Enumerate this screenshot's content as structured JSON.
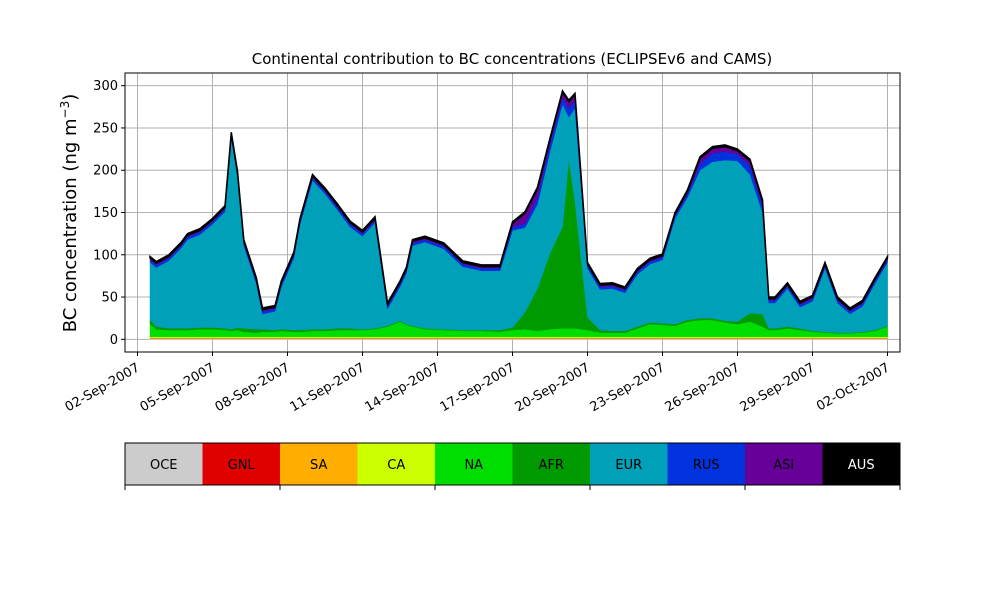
{
  "chart_data": {
    "type": "area",
    "stacked": true,
    "title": "Continental contribution to BC concentrations (ECLIPSEv6 and CAMS)",
    "ylabel": "BC concentration (ng m⁻³)",
    "ylabel_main": "BC concentration (ng m",
    "ylabel_exp": "−3",
    "ylabel_close": ")",
    "xlabel": "",
    "x_start": "2007-09-02",
    "x_end": "2007-10-02",
    "x_ticks": [
      "02-Sep-2007",
      "05-Sep-2007",
      "08-Sep-2007",
      "11-Sep-2007",
      "14-Sep-2007",
      "17-Sep-2007",
      "20-Sep-2007",
      "23-Sep-2007",
      "26-Sep-2007",
      "29-Sep-2007",
      "02-Oct-2007"
    ],
    "y_ticks": [
      0,
      50,
      100,
      150,
      200,
      250,
      300
    ],
    "ylim": [
      -15,
      315
    ],
    "grid": true,
    "dates": [
      "2007-09-02T12:00",
      "2007-09-02T18:00",
      "2007-09-03T06:00",
      "2007-09-03T18:00",
      "2007-09-04T00:00",
      "2007-09-04T12:00",
      "2007-09-05T00:00",
      "2007-09-05T12:00",
      "2007-09-05T18:00",
      "2007-09-06T00:00",
      "2007-09-06T06:00",
      "2007-09-06T18:00",
      "2007-09-07T00:00",
      "2007-09-07T12:00",
      "2007-09-07T18:00",
      "2007-09-08T06:00",
      "2007-09-08T12:00",
      "2007-09-09T00:00",
      "2007-09-09T12:00",
      "2007-09-10T00:00",
      "2007-09-10T12:00",
      "2007-09-11T00:00",
      "2007-09-11T12:00",
      "2007-09-12T00:00",
      "2007-09-12T12:00",
      "2007-09-12T18:00",
      "2007-09-13T00:00",
      "2007-09-13T12:00",
      "2007-09-14T06:00",
      "2007-09-15T00:00",
      "2007-09-15T18:00",
      "2007-09-16T12:00",
      "2007-09-17T00:00",
      "2007-09-17T12:00",
      "2007-09-18T00:00",
      "2007-09-18T12:00",
      "2007-09-19T00:00",
      "2007-09-19T06:00",
      "2007-09-19T12:00",
      "2007-09-20T00:00",
      "2007-09-20T12:00",
      "2007-09-21T00:00",
      "2007-09-21T12:00",
      "2007-09-22T00:00",
      "2007-09-22T12:00",
      "2007-09-23T00:00",
      "2007-09-23T12:00",
      "2007-09-24T00:00",
      "2007-09-24T12:00",
      "2007-09-25T00:00",
      "2007-09-25T12:00",
      "2007-09-26T00:00",
      "2007-09-26T12:00",
      "2007-09-27T00:00",
      "2007-09-27T06:00",
      "2007-09-27T12:00",
      "2007-09-28T00:00",
      "2007-09-28T12:00",
      "2007-09-29T00:00",
      "2007-09-29T12:00",
      "2007-09-30T00:00",
      "2007-09-30T12:00",
      "2007-10-01T00:00",
      "2007-10-01T12:00",
      "2007-10-02T00:00"
    ],
    "series": [
      {
        "name": "OCE",
        "color": "#cccccc",
        "values": [
          1,
          1,
          1,
          1,
          1,
          1,
          1,
          1,
          1,
          1,
          1,
          1,
          1,
          1,
          1,
          1,
          1,
          1,
          1,
          1,
          1,
          1,
          1,
          1,
          1,
          1,
          1,
          1,
          1,
          1,
          1,
          1,
          1,
          1,
          1,
          1,
          1,
          1,
          1,
          1,
          1,
          1,
          1,
          1,
          1,
          1,
          1,
          1,
          1,
          1,
          1,
          1,
          1,
          1,
          1,
          1,
          1,
          1,
          1,
          1,
          1,
          1,
          1,
          1,
          1
        ]
      },
      {
        "name": "GNL",
        "color": "#e00000",
        "values": [
          0,
          0,
          0,
          0,
          0,
          0,
          0,
          0,
          0,
          0,
          0,
          0,
          0,
          0,
          0,
          0,
          0,
          0,
          0,
          0,
          0,
          0,
          0,
          0,
          0,
          0,
          0,
          0,
          0,
          0,
          0,
          0,
          0,
          0,
          0,
          0,
          0,
          0,
          0,
          0,
          0,
          0,
          0,
          0,
          0,
          0,
          0,
          0,
          0,
          0,
          0,
          0,
          0,
          0,
          0,
          0,
          0,
          0,
          0,
          0,
          0,
          0,
          0,
          0,
          0
        ]
      },
      {
        "name": "SA",
        "color": "#ffae00",
        "values": [
          1,
          1,
          1,
          1,
          1,
          1,
          1,
          1,
          1,
          1,
          1,
          1,
          1,
          1,
          1,
          1,
          1,
          1,
          1,
          1,
          1,
          1,
          1,
          1,
          1,
          1,
          1,
          1,
          1,
          1,
          1,
          1,
          1,
          1,
          1,
          1,
          1,
          1,
          1,
          1,
          1,
          1,
          1,
          1,
          1,
          1,
          1,
          1,
          1,
          1,
          1,
          1,
          1,
          1,
          1,
          1,
          1,
          1,
          1,
          1,
          1,
          1,
          1,
          1,
          1
        ]
      },
      {
        "name": "CA",
        "color": "#ccff00",
        "values": [
          1,
          1,
          1,
          1,
          1,
          1,
          1,
          1,
          1,
          1,
          1,
          1,
          1,
          1,
          1,
          1,
          1,
          1,
          1,
          1,
          1,
          1,
          1,
          1,
          1,
          1,
          1,
          1,
          1,
          1,
          1,
          1,
          1,
          1,
          1,
          1,
          1,
          1,
          1,
          1,
          1,
          1,
          1,
          1,
          1,
          1,
          1,
          1,
          1,
          1,
          1,
          1,
          1,
          1,
          1,
          1,
          1,
          1,
          1,
          1,
          1,
          1,
          1,
          1,
          1
        ]
      },
      {
        "name": "NA",
        "color": "#00dd00",
        "values": [
          15,
          9,
          8,
          8,
          8,
          9,
          9,
          8,
          7,
          8,
          6,
          5,
          6,
          6,
          7,
          6,
          6,
          7,
          7,
          8,
          8,
          8,
          9,
          12,
          18,
          14,
          12,
          9,
          8,
          7,
          7,
          6,
          8,
          9,
          7,
          9,
          10,
          10,
          10,
          8,
          5,
          5,
          5,
          10,
          15,
          14,
          13,
          18,
          20,
          20,
          17,
          15,
          18,
          12,
          8,
          8,
          10,
          8,
          6,
          5,
          4,
          4,
          5,
          7,
          12
        ]
      },
      {
        "name": "AFR",
        "color": "#009900",
        "values": [
          5,
          3,
          2,
          2,
          2,
          2,
          2,
          2,
          2,
          3,
          4,
          4,
          3,
          2,
          2,
          2,
          2,
          2,
          2,
          2,
          2,
          1,
          1,
          1,
          1,
          1,
          1,
          1,
          1,
          1,
          1,
          2,
          3,
          20,
          50,
          90,
          120,
          200,
          150,
          15,
          3,
          2,
          2,
          2,
          2,
          2,
          2,
          2,
          2,
          2,
          2,
          3,
          10,
          15,
          2,
          2,
          2,
          2,
          1,
          1,
          1,
          1,
          1,
          1,
          1
        ]
      },
      {
        "name": "EUR",
        "color": "#00a0b8",
        "values": [
          68,
          70,
          80,
          95,
          105,
          110,
          122,
          138,
          226,
          178,
          98,
          54,
          18,
          22,
          50,
          85,
          125,
          176,
          160,
          140,
          120,
          110,
          125,
          20,
          40,
          60,
          95,
          102,
          95,
          75,
          70,
          70,
          115,
          100,
          100,
          120,
          145,
          50,
          110,
          58,
          48,
          50,
          45,
          62,
          69,
          75,
          125,
          145,
          175,
          185,
          190,
          190,
          164,
          120,
          30,
          30,
          45,
          25,
          35,
          75,
          35,
          22,
          30,
          55,
          75
        ]
      },
      {
        "name": "RUS",
        "color": "#0033dd",
        "values": [
          3,
          3,
          3,
          3,
          3,
          3,
          3,
          3,
          3,
          3,
          3,
          3,
          3,
          3,
          3,
          3,
          3,
          3,
          3,
          3,
          3,
          3,
          3,
          3,
          3,
          3,
          3,
          3,
          3,
          3,
          3,
          3,
          4,
          5,
          8,
          8,
          8,
          10,
          10,
          3,
          3,
          3,
          3,
          3,
          3,
          3,
          3,
          4,
          8,
          10,
          10,
          8,
          10,
          8,
          3,
          3,
          3,
          3,
          3,
          3,
          3,
          3,
          3,
          3,
          3
        ]
      },
      {
        "name": "ASI",
        "color": "#660099",
        "values": [
          2,
          2,
          2,
          2,
          2,
          2,
          2,
          2,
          2,
          2,
          2,
          2,
          2,
          2,
          2,
          2,
          2,
          2,
          2,
          2,
          2,
          2,
          2,
          2,
          2,
          2,
          2,
          2,
          2,
          2,
          2,
          2,
          4,
          12,
          10,
          6,
          6,
          8,
          6,
          2,
          2,
          2,
          2,
          2,
          2,
          2,
          2,
          3,
          6,
          6,
          6,
          4,
          6,
          5,
          2,
          2,
          2,
          2,
          2,
          2,
          2,
          2,
          2,
          2,
          2
        ]
      },
      {
        "name": "AUS",
        "color": "#000000",
        "values": [
          2,
          2,
          2,
          2,
          2,
          2,
          2,
          2,
          2,
          2,
          2,
          2,
          2,
          2,
          2,
          2,
          2,
          2,
          2,
          2,
          2,
          2,
          2,
          2,
          2,
          2,
          2,
          2,
          2,
          2,
          2,
          2,
          2,
          2,
          2,
          2,
          2,
          2,
          2,
          2,
          2,
          2,
          2,
          2,
          2,
          2,
          2,
          2,
          2,
          2,
          2,
          2,
          2,
          2,
          2,
          2,
          2,
          2,
          2,
          2,
          2,
          2,
          2,
          2,
          2
        ]
      }
    ]
  }
}
